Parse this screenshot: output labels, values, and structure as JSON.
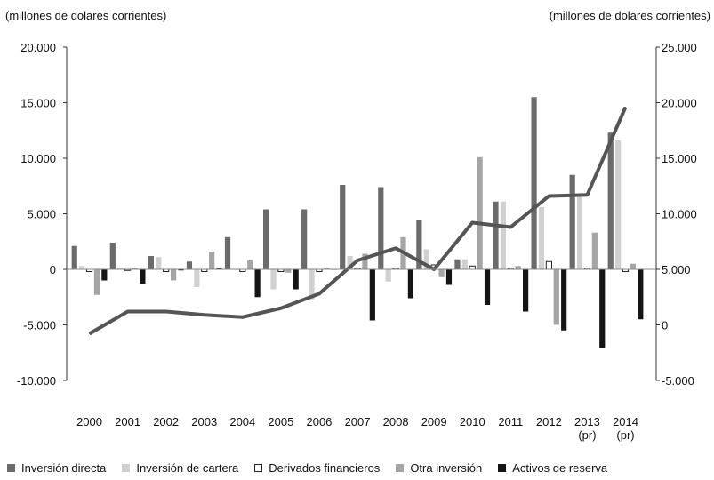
{
  "chart_data": {
    "type": "bar",
    "left_axis_unit": "(millones de dolares corrientes)",
    "right_axis_unit": "(millones de dolares corrientes)",
    "categories": [
      [
        "2000"
      ],
      [
        "2001"
      ],
      [
        "2002"
      ],
      [
        "2003"
      ],
      [
        "2004"
      ],
      [
        "2005"
      ],
      [
        "2006"
      ],
      [
        "2007"
      ],
      [
        "2008"
      ],
      [
        "2009"
      ],
      [
        "2010"
      ],
      [
        "2011"
      ],
      [
        "2012"
      ],
      [
        "2013",
        "(pr)"
      ],
      [
        "2014",
        "(pr)"
      ]
    ],
    "ylim_left": [
      -10000,
      20000
    ],
    "yticks_left": [
      -10000,
      -5000,
      0,
      5000,
      10000,
      15000,
      20000
    ],
    "ytick_labels_left": [
      "-10.000",
      "-5.000",
      "0",
      "5.000",
      "10.000",
      "15.000",
      "20.000"
    ],
    "ylim_right": [
      -5000,
      25000
    ],
    "yticks_right": [
      -5000,
      0,
      5000,
      10000,
      15000,
      20000,
      25000
    ],
    "ytick_labels_right": [
      "-5.000",
      "0",
      "5.000",
      "10.000",
      "15.000",
      "20.000",
      "25.000"
    ],
    "series": [
      {
        "name": "Inversión directa",
        "color": "#6b6b6b",
        "border": "none",
        "values": [
          2100,
          2400,
          1200,
          700,
          2900,
          5400,
          5400,
          7600,
          7400,
          4400,
          900,
          6100,
          15500,
          8500,
          12300
        ]
      },
      {
        "name": "Inversión de cartera",
        "color": "#d0d0d0",
        "border": "none",
        "values": [
          300,
          100,
          1100,
          -1600,
          0,
          -1800,
          -2700,
          1200,
          -1100,
          1800,
          900,
          6100,
          5600,
          6600,
          11600
        ]
      },
      {
        "name": "Derivados financieros",
        "color": "#ffffff",
        "border": "#222222",
        "values": [
          -200,
          -100,
          -200,
          -200,
          -200,
          -200,
          -200,
          100,
          100,
          400,
          300,
          100,
          700,
          100,
          -200
        ]
      },
      {
        "name": "Otra inversión",
        "color": "#a5a5a5",
        "border": "none",
        "values": [
          -2300,
          100,
          -1000,
          1600,
          800,
          -300,
          100,
          1400,
          2900,
          -700,
          10100,
          300,
          -5000,
          3300,
          500
        ]
      },
      {
        "name": "Activos de reserva",
        "color": "#151515",
        "border": "none",
        "values": [
          -1000,
          -1300,
          -100,
          100,
          -2500,
          -1800,
          0,
          -4600,
          -2600,
          -1400,
          -3200,
          -3800,
          -5500,
          -7100,
          -4500
        ]
      }
    ],
    "line": {
      "axis": "right",
      "color": "#555555",
      "values": [
        -800,
        1200,
        1200,
        900,
        700,
        1500,
        2800,
        5800,
        6900,
        5000,
        9200,
        8800,
        11600,
        11700,
        19600
      ]
    }
  }
}
